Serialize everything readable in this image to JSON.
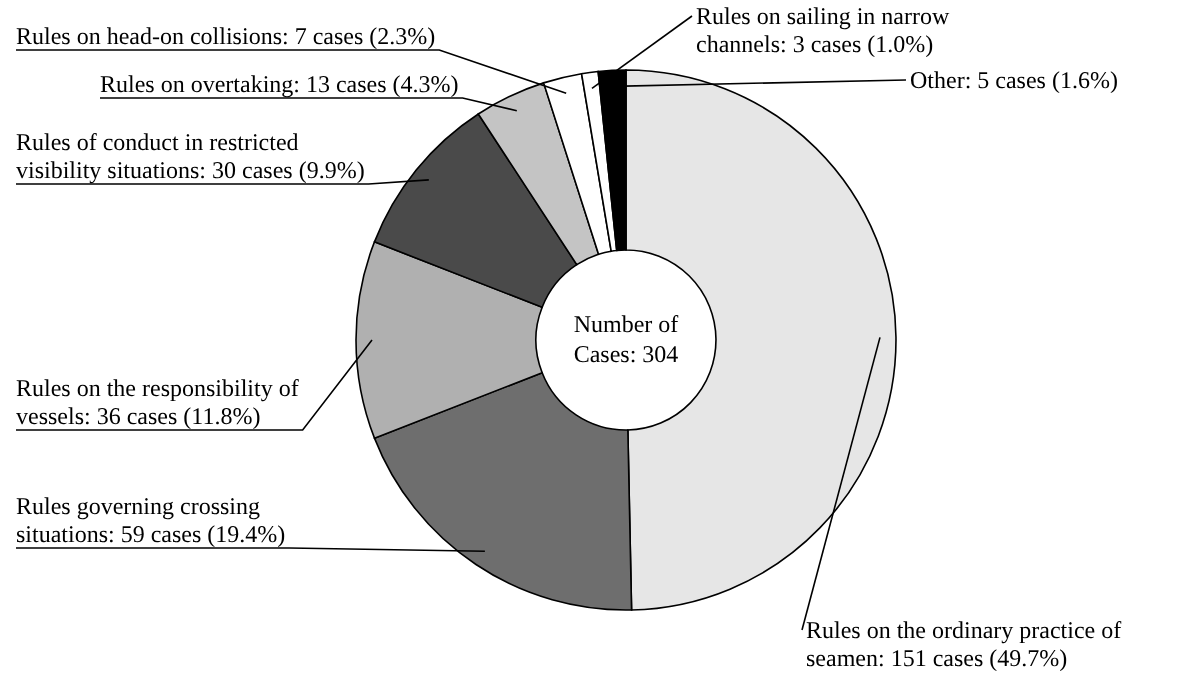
{
  "chart_data": {
    "type": "donut",
    "categories": [
      "Rules on the ordinary practice of seamen",
      "Rules governing crossing situations",
      "Rules on the responsibility of vessels",
      "Rules of conduct in restricted visibility situations",
      "Rules on overtaking",
      "Rules on head-on collisions",
      "Rules on sailing in narrow channels",
      "Other"
    ],
    "values": [
      151,
      59,
      36,
      30,
      13,
      7,
      3,
      5
    ],
    "value_labels": [
      "151 cases (49.7%)",
      "59 cases (19.4%)",
      "36 cases (11.8%)",
      "30 cases (9.9%)",
      "13 cases (4.3%)",
      "7 cases (2.3%)",
      "3 cases (1.0%)",
      "5 cases (1.6%)"
    ],
    "colors": [
      "#e6e6e6",
      "#6e6e6e",
      "#b0b0b0",
      "#4a4a4a",
      "#c4c4c4",
      "#ffffff",
      "#ffffff",
      "#000000"
    ],
    "annotations": [
      "Number of Cases: 304"
    ]
  }
}
